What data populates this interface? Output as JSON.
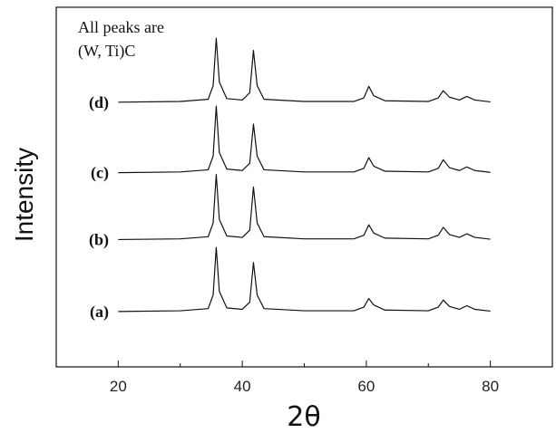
{
  "chart_data": {
    "type": "line",
    "x_label": "2θ",
    "y_label": "Intensity",
    "annotation": [
      "All peaks are",
      "(W, Ti)C"
    ],
    "xlim": [
      10,
      90
    ],
    "xticks": [
      20,
      40,
      60,
      80
    ],
    "xminorticks": [
      30,
      50,
      70
    ],
    "ylim": [
      0,
      100
    ],
    "x": [
      20,
      30,
      34.5,
      35.3,
      35.8,
      36.3,
      37.5,
      40,
      41.2,
      41.8,
      42.4,
      43.5,
      50,
      58,
      59.6,
      60.4,
      61.2,
      63,
      70,
      71.6,
      72.4,
      73.4,
      75,
      76.2,
      77.5,
      80
    ],
    "series": [
      {
        "name": "(a)",
        "color": "#111111",
        "values": [
          15.4,
          15.6,
          16.2,
          20,
          33.2,
          21,
          16.4,
          16,
          18,
          29,
          20,
          16.2,
          15.6,
          15.6,
          16.6,
          19,
          17.2,
          15.8,
          15.6,
          16.6,
          18.6,
          16.8,
          16,
          17,
          16,
          15.5
        ]
      },
      {
        "name": "(b)",
        "color": "#111111",
        "values": [
          35.4,
          35.6,
          36.2,
          40,
          53.5,
          41,
          36.4,
          36,
          38,
          50,
          40,
          36.2,
          35.6,
          35.6,
          36.6,
          39.5,
          37.2,
          35.8,
          35.6,
          36.6,
          38.8,
          36.8,
          36,
          37,
          36,
          35.5
        ]
      },
      {
        "name": "(c)",
        "color": "#111111",
        "values": [
          54,
          54.2,
          54.8,
          58.6,
          72.5,
          59.6,
          55,
          54.6,
          56.6,
          67.5,
          58.6,
          54.8,
          54.2,
          54.2,
          55.2,
          58.2,
          55.8,
          54.4,
          54.2,
          55.2,
          57.6,
          55.4,
          54.6,
          55.6,
          54.6,
          54.1
        ]
      },
      {
        "name": "(d)",
        "color": "#111111",
        "values": [
          73.6,
          73.8,
          74.4,
          78.2,
          91.4,
          79.2,
          74.6,
          74.2,
          76.2,
          88,
          78.2,
          74.4,
          73.8,
          73.8,
          74.8,
          78,
          75.4,
          74,
          73.8,
          74.8,
          76.8,
          75,
          74.2,
          75.2,
          74.2,
          73.7
        ]
      }
    ]
  }
}
